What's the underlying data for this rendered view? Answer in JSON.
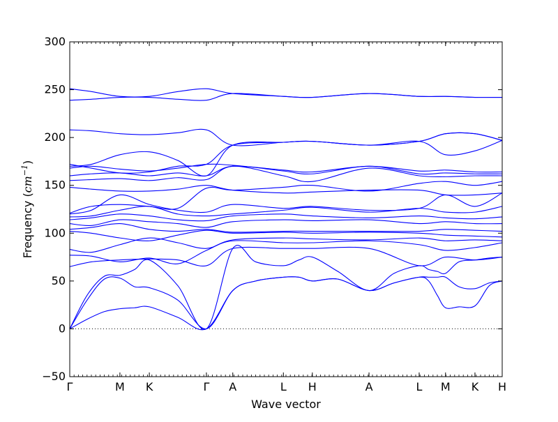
{
  "chart_data": {
    "type": "line",
    "title": "",
    "xlabel": "Wave vector",
    "ylabel_text": "Frequency (",
    "ylabel_unit": "cm",
    "ylabel_exp": "−1",
    "ylabel_close": ")",
    "ylim": [
      -50,
      300
    ],
    "yticks": [
      -50,
      0,
      50,
      100,
      150,
      200,
      250,
      300
    ],
    "xlim": [
      0,
      1
    ],
    "zero_line": true,
    "line_color": "#0000ff",
    "high_symmetry_points": [
      {
        "label": "Γ",
        "x": 0.0
      },
      {
        "label": "M",
        "x": 0.116
      },
      {
        "label": "K",
        "x": 0.184
      },
      {
        "label": "Γ",
        "x": 0.316
      },
      {
        "label": "A",
        "x": 0.377
      },
      {
        "label": "L",
        "x": 0.494
      },
      {
        "label": "H",
        "x": 0.561
      },
      {
        "label": "A",
        "x": 0.692
      },
      {
        "label": "L",
        "x": 0.808
      },
      {
        "label": "M",
        "x": 0.869
      },
      {
        "label": "K",
        "x": 0.937
      },
      {
        "label": "H",
        "x": 1.0
      }
    ],
    "minor_tick_count": 100,
    "series": [
      {
        "x": [
          0,
          0.04,
          0.08,
          0.116,
          0.15,
          0.184,
          0.25,
          0.316,
          0.377,
          0.43,
          0.494,
          0.53,
          0.561,
          0.62,
          0.692,
          0.75,
          0.808,
          0.83,
          0.85,
          0.869,
          0.9,
          0.937,
          0.97,
          1.0
        ],
        "y": [
          0,
          10,
          18,
          21,
          22,
          23,
          12,
          0,
          40,
          50,
          54,
          54,
          50,
          52,
          40,
          48,
          54,
          50,
          35,
          22,
          23,
          24,
          45,
          50
        ]
      },
      {
        "x": [
          0,
          0.04,
          0.08,
          0.116,
          0.15,
          0.184,
          0.25,
          0.316,
          0.377,
          0.43,
          0.494,
          0.53,
          0.561,
          0.62,
          0.692,
          0.75,
          0.808,
          0.83,
          0.85,
          0.869,
          0.9,
          0.937,
          0.97,
          1.0
        ],
        "y": [
          0,
          30,
          52,
          53,
          44,
          43,
          30,
          0,
          40,
          50,
          54,
          54,
          50,
          52,
          40,
          48,
          54,
          54,
          54,
          54,
          44,
          42,
          48,
          50
        ]
      },
      {
        "x": [
          0,
          0.04,
          0.08,
          0.116,
          0.15,
          0.184,
          0.25,
          0.316,
          0.377,
          0.43,
          0.494,
          0.53,
          0.561,
          0.62,
          0.692,
          0.75,
          0.808,
          0.83,
          0.85,
          0.869,
          0.9,
          0.937,
          0.97,
          1.0
        ],
        "y": [
          0,
          35,
          55,
          56,
          62,
          72,
          45,
          0,
          84,
          70,
          66,
          72,
          75,
          60,
          40,
          58,
          66,
          62,
          60,
          58,
          70,
          72,
          74,
          75
        ]
      },
      {
        "x": [
          0,
          0.05,
          0.116,
          0.184,
          0.25,
          0.316,
          0.377,
          0.494,
          0.561,
          0.692,
          0.808,
          0.869,
          0.937,
          1.0
        ],
        "y": [
          65,
          70,
          72,
          73,
          72,
          66,
          84,
          84,
          84,
          84,
          66,
          75,
          72,
          75
        ]
      },
      {
        "x": [
          0,
          0.05,
          0.116,
          0.184,
          0.25,
          0.316,
          0.377,
          0.494,
          0.561,
          0.692,
          0.808,
          0.869,
          0.937,
          1.0
        ],
        "y": [
          77,
          76,
          70,
          74,
          68,
          82,
          92,
          90,
          90,
          92,
          88,
          82,
          85,
          90
        ]
      },
      {
        "x": [
          0,
          0.05,
          0.116,
          0.184,
          0.25,
          0.316,
          0.377,
          0.494,
          0.561,
          0.692,
          0.808,
          0.869,
          0.937,
          1.0
        ],
        "y": [
          83,
          80,
          88,
          95,
          90,
          84,
          93,
          95,
          94,
          93,
          95,
          92,
          93,
          92
        ]
      },
      {
        "x": [
          0,
          0.05,
          0.116,
          0.184,
          0.25,
          0.316,
          0.377,
          0.494,
          0.561,
          0.692,
          0.808,
          0.869,
          0.937,
          1.0
        ],
        "y": [
          102,
          100,
          95,
          92,
          98,
          103,
          100,
          101,
          100,
          101,
          100,
          98,
          97,
          96
        ]
      },
      {
        "x": [
          0,
          0.05,
          0.116,
          0.184,
          0.25,
          0.316,
          0.377,
          0.494,
          0.561,
          0.692,
          0.808,
          0.869,
          0.937,
          1.0
        ],
        "y": [
          104,
          106,
          110,
          104,
          102,
          104,
          101,
          102,
          102,
          102,
          102,
          104,
          103,
          102
        ]
      },
      {
        "x": [
          0,
          0.05,
          0.116,
          0.184,
          0.25,
          0.316,
          0.377,
          0.494,
          0.561,
          0.692,
          0.808,
          0.869,
          0.937,
          1.0
        ],
        "y": [
          110,
          108,
          114,
          112,
          110,
          106,
          112,
          114,
          113,
          114,
          110,
          112,
          110,
          110
        ]
      },
      {
        "x": [
          0,
          0.05,
          0.116,
          0.184,
          0.25,
          0.316,
          0.377,
          0.494,
          0.561,
          0.692,
          0.808,
          0.869,
          0.937,
          1.0
        ],
        "y": [
          114,
          116,
          120,
          118,
          114,
          113,
          118,
          120,
          118,
          116,
          118,
          116,
          115,
          117
        ]
      },
      {
        "x": [
          0,
          0.05,
          0.116,
          0.184,
          0.25,
          0.316,
          0.377,
          0.494,
          0.561,
          0.692,
          0.808,
          0.869,
          0.937,
          1.0
        ],
        "y": [
          117,
          118,
          124,
          128,
          120,
          118,
          120,
          124,
          127,
          122,
          126,
          122,
          122,
          128
        ]
      },
      {
        "x": [
          0,
          0.05,
          0.116,
          0.184,
          0.25,
          0.316,
          0.377,
          0.494,
          0.561,
          0.692,
          0.808,
          0.869,
          0.937,
          1.0
        ],
        "y": [
          120,
          124,
          140,
          130,
          124,
          122,
          130,
          126,
          128,
          124,
          126,
          140,
          128,
          142
        ]
      },
      {
        "x": [
          0,
          0.05,
          0.116,
          0.184,
          0.25,
          0.316,
          0.377,
          0.494,
          0.561,
          0.692,
          0.808,
          0.869,
          0.937,
          1.0
        ],
        "y": [
          121,
          128,
          130,
          128,
          126,
          147,
          145,
          148,
          150,
          144,
          152,
          154,
          150,
          154
        ]
      },
      {
        "x": [
          0,
          0.05,
          0.116,
          0.184,
          0.25,
          0.316,
          0.377,
          0.494,
          0.561,
          0.692,
          0.808,
          0.869,
          0.937,
          1.0
        ],
        "y": [
          148,
          146,
          144,
          144,
          146,
          150,
          145,
          142,
          143,
          145,
          145,
          140,
          140,
          142
        ]
      },
      {
        "x": [
          0,
          0.05,
          0.116,
          0.184,
          0.25,
          0.316,
          0.377,
          0.494,
          0.561,
          0.692,
          0.808,
          0.869,
          0.937,
          1.0
        ],
        "y": [
          155,
          156,
          157,
          155,
          158,
          156,
          170,
          160,
          154,
          168,
          160,
          159,
          160,
          160
        ]
      },
      {
        "x": [
          0,
          0.05,
          0.116,
          0.184,
          0.25,
          0.316,
          0.377,
          0.494,
          0.561,
          0.692,
          0.808,
          0.869,
          0.937,
          1.0
        ],
        "y": [
          160,
          162,
          163,
          160,
          163,
          160,
          170,
          165,
          162,
          170,
          162,
          163,
          162,
          162
        ]
      },
      {
        "x": [
          0,
          0.05,
          0.116,
          0.184,
          0.25,
          0.316,
          0.377,
          0.494,
          0.561,
          0.692,
          0.808,
          0.869,
          0.937,
          1.0
        ],
        "y": [
          168,
          170,
          167,
          165,
          168,
          172,
          171,
          166,
          164,
          170,
          165,
          166,
          164,
          164
        ]
      },
      {
        "x": [
          0,
          0.05,
          0.116,
          0.184,
          0.25,
          0.316,
          0.377,
          0.494,
          0.561,
          0.692,
          0.808,
          0.869,
          0.937,
          1.0
        ],
        "y": [
          172,
          168,
          163,
          164,
          170,
          172,
          192,
          195,
          196,
          192,
          196,
          204,
          204,
          197
        ]
      },
      {
        "x": [
          0,
          0.05,
          0.116,
          0.184,
          0.25,
          0.316,
          0.377,
          0.494,
          0.561,
          0.692,
          0.808,
          0.869,
          0.937,
          1.0
        ],
        "y": [
          170,
          172,
          182,
          185,
          176,
          160,
          192,
          195,
          196,
          192,
          196,
          182,
          186,
          197
        ]
      },
      {
        "x": [
          0,
          0.05,
          0.116,
          0.184,
          0.25,
          0.316,
          0.377,
          0.494,
          0.561,
          0.692,
          0.808,
          0.869,
          0.937,
          1.0
        ],
        "y": [
          208,
          207,
          204,
          203,
          205,
          208,
          192,
          195,
          196,
          192,
          196,
          204,
          204,
          197
        ]
      },
      {
        "x": [
          0,
          0.05,
          0.116,
          0.184,
          0.25,
          0.316,
          0.377,
          0.494,
          0.561,
          0.692,
          0.808,
          0.869,
          0.937,
          1.0
        ],
        "y": [
          239,
          240,
          242,
          242,
          240,
          239,
          246,
          243,
          242,
          246,
          243,
          243,
          242,
          242
        ]
      },
      {
        "x": [
          0,
          0.05,
          0.116,
          0.184,
          0.25,
          0.316,
          0.377,
          0.494,
          0.561,
          0.692,
          0.808,
          0.869,
          0.937,
          1.0
        ],
        "y": [
          251,
          248,
          243,
          243,
          248,
          251,
          246,
          243,
          242,
          246,
          243,
          243,
          242,
          242
        ]
      }
    ]
  }
}
